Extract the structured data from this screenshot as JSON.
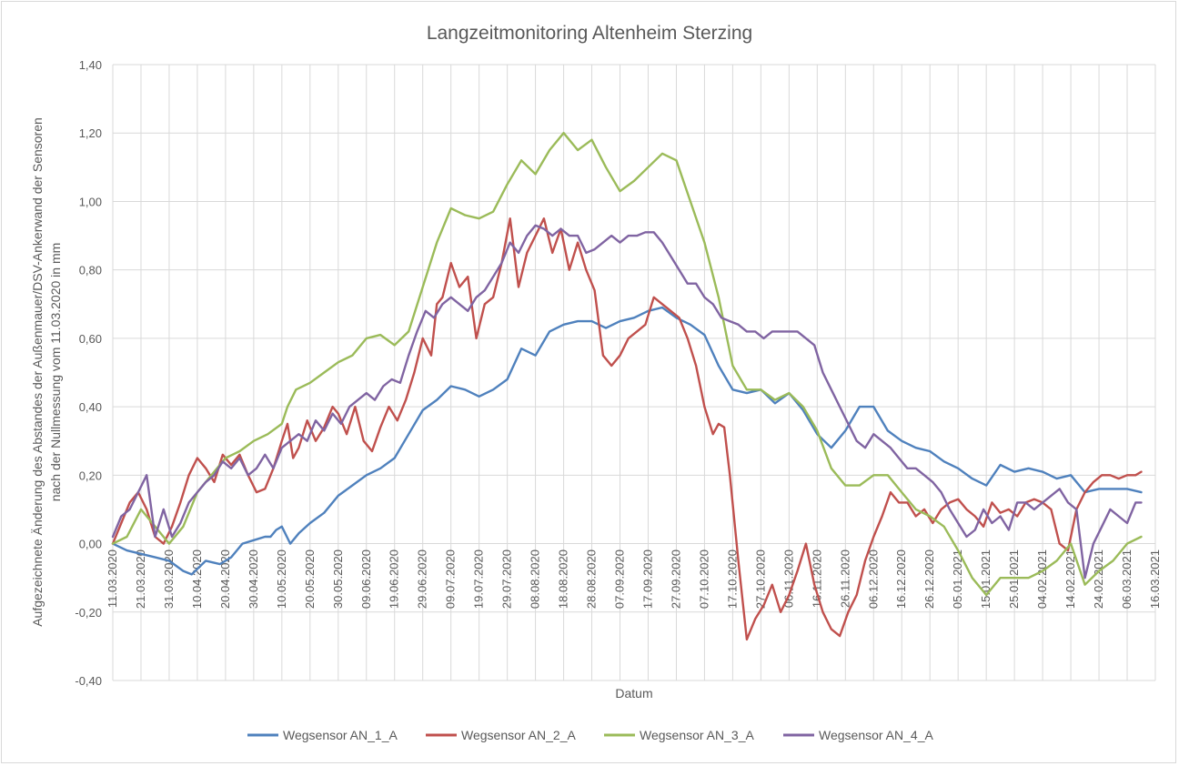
{
  "chart_data": {
    "type": "line",
    "title": "Langzeitmonitoring Altenheim Sterzing",
    "xlabel": "Datum",
    "ylabel_lines": [
      "Aufgezeichnete Änderung des Abstandes der Außenmauer/DSV-Ankerwand  der Sensoren",
      "nach der Nullmessung vom 11.03.2020 in mm"
    ],
    "ylim": [
      -0.4,
      1.4
    ],
    "y_ticks": [
      "-0,40",
      "-0,20",
      "0,00",
      "0,20",
      "0,40",
      "0,60",
      "0,80",
      "1,00",
      "1,20",
      "1,40"
    ],
    "y_tick_values": [
      -0.4,
      -0.2,
      0,
      0.2,
      0.4,
      0.6,
      0.8,
      1.0,
      1.2,
      1.4
    ],
    "x_ticks": [
      "11.03.2020",
      "21.03.2020",
      "31.03.2020",
      "10.04.2020",
      "20.04.2020",
      "30.04.2020",
      "10.05.2020",
      "20.05.2020",
      "30.05.2020",
      "09.06.2020",
      "19.06.2020",
      "29.06.2020",
      "09.07.2020",
      "19.07.2020",
      "29.07.2020",
      "08.08.2020",
      "18.08.2020",
      "28.08.2020",
      "07.09.2020",
      "17.09.2020",
      "27.09.2020",
      "07.10.2020",
      "17.10.2020",
      "27.10.2020",
      "06.11.2020",
      "16.11.2020",
      "26.11.2020",
      "06.12.2020",
      "16.12.2020",
      "26.12.2020",
      "05.01.2021",
      "15.01.2021",
      "25.01.2021",
      "04.02.2021",
      "14.02.2021",
      "24.02.2021",
      "06.03.2021",
      "16.03.2021"
    ],
    "x_tick_days": [
      0,
      10,
      20,
      30,
      40,
      50,
      60,
      70,
      80,
      90,
      100,
      110,
      120,
      130,
      140,
      150,
      160,
      170,
      180,
      190,
      200,
      210,
      220,
      230,
      240,
      250,
      260,
      270,
      280,
      290,
      300,
      310,
      320,
      330,
      340,
      350,
      360,
      370
    ],
    "xlim_days": [
      0,
      370
    ],
    "grid": true,
    "legend_position": "bottom",
    "series": [
      {
        "name": "Wegsensor AN_1_A",
        "color": "#4f81bd",
        "x_days": [
          0,
          5,
          10,
          15,
          20,
          25,
          28,
          33,
          38,
          42,
          46,
          50,
          54,
          56,
          58,
          60,
          63,
          66,
          70,
          75,
          80,
          85,
          90,
          95,
          100,
          105,
          110,
          115,
          120,
          125,
          130,
          135,
          140,
          145,
          150,
          155,
          160,
          165,
          170,
          175,
          180,
          185,
          190,
          195,
          200,
          205,
          210,
          215,
          220,
          225,
          230,
          235,
          240,
          245,
          250,
          255,
          260,
          265,
          270,
          275,
          280,
          285,
          290,
          295,
          300,
          305,
          310,
          315,
          320,
          325,
          330,
          335,
          340,
          345,
          350,
          355,
          360,
          365
        ],
        "values": [
          0.0,
          -0.02,
          -0.03,
          -0.04,
          -0.05,
          -0.08,
          -0.09,
          -0.05,
          -0.06,
          -0.04,
          0.0,
          0.01,
          0.02,
          0.02,
          0.04,
          0.05,
          0.0,
          0.03,
          0.06,
          0.09,
          0.14,
          0.17,
          0.2,
          0.22,
          0.25,
          0.32,
          0.39,
          0.42,
          0.46,
          0.45,
          0.43,
          0.45,
          0.48,
          0.57,
          0.55,
          0.62,
          0.64,
          0.65,
          0.65,
          0.63,
          0.65,
          0.66,
          0.68,
          0.69,
          0.66,
          0.64,
          0.61,
          0.52,
          0.45,
          0.44,
          0.45,
          0.41,
          0.44,
          0.39,
          0.32,
          0.28,
          0.33,
          0.4,
          0.4,
          0.33,
          0.3,
          0.28,
          0.27,
          0.24,
          0.22,
          0.19,
          0.17,
          0.23,
          0.21,
          0.22,
          0.21,
          0.19,
          0.2,
          0.15,
          0.16,
          0.16,
          0.16,
          0.15
        ]
      },
      {
        "name": "Wegsensor AN_2_A",
        "color": "#c0504d",
        "x_days": [
          0,
          3,
          6,
          9,
          12,
          15,
          18,
          21,
          24,
          27,
          30,
          33,
          36,
          39,
          42,
          45,
          48,
          51,
          54,
          57,
          60,
          62,
          64,
          66,
          69,
          72,
          75,
          78,
          80,
          83,
          86,
          89,
          92,
          95,
          98,
          101,
          104,
          107,
          110,
          113,
          115,
          117,
          120,
          123,
          126,
          129,
          132,
          135,
          138,
          141,
          144,
          147,
          150,
          153,
          156,
          159,
          162,
          165,
          168,
          171,
          174,
          177,
          180,
          183,
          186,
          189,
          192,
          195,
          198,
          201,
          204,
          207,
          210,
          213,
          215,
          217,
          219,
          222,
          225,
          228,
          231,
          234,
          237,
          240,
          243,
          246,
          249,
          252,
          255,
          258,
          261,
          264,
          267,
          270,
          273,
          276,
          279,
          282,
          285,
          288,
          291,
          294,
          297,
          300,
          303,
          306,
          309,
          312,
          315,
          318,
          321,
          324,
          327,
          330,
          333,
          336,
          339,
          342,
          345,
          348,
          351,
          354,
          357,
          360,
          363,
          365
        ],
        "values": [
          0.0,
          0.06,
          0.12,
          0.15,
          0.1,
          0.02,
          0.0,
          0.05,
          0.12,
          0.2,
          0.25,
          0.22,
          0.18,
          0.26,
          0.23,
          0.26,
          0.2,
          0.15,
          0.16,
          0.22,
          0.3,
          0.35,
          0.25,
          0.28,
          0.36,
          0.3,
          0.34,
          0.4,
          0.38,
          0.32,
          0.4,
          0.3,
          0.27,
          0.34,
          0.4,
          0.36,
          0.42,
          0.5,
          0.6,
          0.55,
          0.7,
          0.72,
          0.82,
          0.75,
          0.78,
          0.6,
          0.7,
          0.72,
          0.82,
          0.95,
          0.75,
          0.85,
          0.9,
          0.95,
          0.85,
          0.92,
          0.8,
          0.88,
          0.8,
          0.74,
          0.55,
          0.52,
          0.55,
          0.6,
          0.62,
          0.64,
          0.72,
          0.7,
          0.68,
          0.66,
          0.6,
          0.52,
          0.4,
          0.32,
          0.35,
          0.34,
          0.2,
          -0.05,
          -0.28,
          -0.22,
          -0.18,
          -0.12,
          -0.2,
          -0.15,
          -0.08,
          0.0,
          -0.12,
          -0.2,
          -0.25,
          -0.27,
          -0.2,
          -0.15,
          -0.05,
          0.02,
          0.08,
          0.15,
          0.12,
          0.12,
          0.08,
          0.1,
          0.06,
          0.1,
          0.12,
          0.13,
          0.1,
          0.08,
          0.05,
          0.12,
          0.09,
          0.1,
          0.08,
          0.12,
          0.13,
          0.12,
          0.1,
          0.0,
          -0.02,
          0.1,
          0.15,
          0.18,
          0.2,
          0.2,
          0.19,
          0.2,
          0.2,
          0.21
        ]
      },
      {
        "name": "Wegsensor AN_3_A",
        "color": "#9bbb59",
        "x_days": [
          0,
          5,
          10,
          15,
          20,
          25,
          30,
          35,
          40,
          45,
          50,
          55,
          60,
          62,
          65,
          70,
          75,
          80,
          85,
          90,
          95,
          100,
          105,
          110,
          115,
          120,
          125,
          130,
          135,
          140,
          145,
          150,
          155,
          160,
          165,
          170,
          175,
          180,
          185,
          190,
          195,
          200,
          205,
          210,
          215,
          220,
          225,
          230,
          235,
          240,
          245,
          250,
          255,
          260,
          265,
          270,
          275,
          280,
          285,
          290,
          295,
          300,
          305,
          310,
          315,
          320,
          325,
          330,
          335,
          340,
          345,
          350,
          355,
          360,
          365
        ],
        "values": [
          0.0,
          0.02,
          0.1,
          0.05,
          0.0,
          0.05,
          0.15,
          0.2,
          0.25,
          0.27,
          0.3,
          0.32,
          0.35,
          0.4,
          0.45,
          0.47,
          0.5,
          0.53,
          0.55,
          0.6,
          0.61,
          0.58,
          0.62,
          0.75,
          0.88,
          0.98,
          0.96,
          0.95,
          0.97,
          1.05,
          1.12,
          1.08,
          1.15,
          1.2,
          1.15,
          1.18,
          1.1,
          1.03,
          1.06,
          1.1,
          1.14,
          1.12,
          1.0,
          0.88,
          0.72,
          0.52,
          0.45,
          0.45,
          0.42,
          0.44,
          0.4,
          0.33,
          0.22,
          0.17,
          0.17,
          0.2,
          0.2,
          0.15,
          0.1,
          0.08,
          0.05,
          -0.02,
          -0.1,
          -0.15,
          -0.1,
          -0.1,
          -0.1,
          -0.08,
          -0.05,
          0.0,
          -0.12,
          -0.08,
          -0.05,
          0.0,
          0.02
        ]
      },
      {
        "name": "Wegsensor AN_4_A",
        "color": "#8064a2",
        "x_days": [
          0,
          3,
          6,
          9,
          12,
          15,
          18,
          21,
          24,
          27,
          30,
          33,
          36,
          39,
          42,
          45,
          48,
          51,
          54,
          57,
          60,
          63,
          66,
          69,
          72,
          75,
          78,
          81,
          84,
          87,
          90,
          93,
          96,
          99,
          102,
          105,
          108,
          111,
          114,
          117,
          120,
          123,
          126,
          129,
          132,
          135,
          138,
          141,
          144,
          147,
          150,
          153,
          156,
          159,
          162,
          165,
          168,
          171,
          174,
          177,
          180,
          183,
          186,
          189,
          192,
          195,
          198,
          201,
          204,
          207,
          210,
          213,
          216,
          219,
          222,
          225,
          228,
          231,
          234,
          237,
          240,
          243,
          246,
          249,
          252,
          255,
          258,
          261,
          264,
          267,
          270,
          273,
          276,
          279,
          282,
          285,
          288,
          291,
          294,
          297,
          300,
          303,
          306,
          309,
          312,
          315,
          318,
          321,
          324,
          327,
          330,
          333,
          336,
          339,
          342,
          345,
          348,
          351,
          354,
          357,
          360,
          363,
          365
        ],
        "values": [
          0.02,
          0.08,
          0.1,
          0.15,
          0.2,
          0.02,
          0.1,
          0.02,
          0.06,
          0.12,
          0.15,
          0.18,
          0.2,
          0.24,
          0.22,
          0.25,
          0.2,
          0.22,
          0.26,
          0.22,
          0.28,
          0.3,
          0.32,
          0.3,
          0.36,
          0.33,
          0.38,
          0.35,
          0.4,
          0.42,
          0.44,
          0.42,
          0.46,
          0.48,
          0.47,
          0.55,
          0.62,
          0.68,
          0.66,
          0.7,
          0.72,
          0.7,
          0.68,
          0.72,
          0.74,
          0.78,
          0.82,
          0.88,
          0.85,
          0.9,
          0.93,
          0.92,
          0.9,
          0.92,
          0.9,
          0.9,
          0.85,
          0.86,
          0.88,
          0.9,
          0.88,
          0.9,
          0.9,
          0.91,
          0.91,
          0.88,
          0.84,
          0.8,
          0.76,
          0.76,
          0.72,
          0.7,
          0.66,
          0.65,
          0.64,
          0.62,
          0.62,
          0.6,
          0.62,
          0.62,
          0.62,
          0.62,
          0.6,
          0.58,
          0.5,
          0.45,
          0.4,
          0.35,
          0.3,
          0.28,
          0.32,
          0.3,
          0.28,
          0.25,
          0.22,
          0.22,
          0.2,
          0.18,
          0.15,
          0.1,
          0.06,
          0.02,
          0.04,
          0.1,
          0.06,
          0.08,
          0.04,
          0.12,
          0.12,
          0.1,
          0.12,
          0.14,
          0.16,
          0.12,
          0.1,
          -0.1,
          0.0,
          0.05,
          0.1,
          0.08,
          0.06,
          0.12,
          0.12
        ]
      }
    ]
  }
}
